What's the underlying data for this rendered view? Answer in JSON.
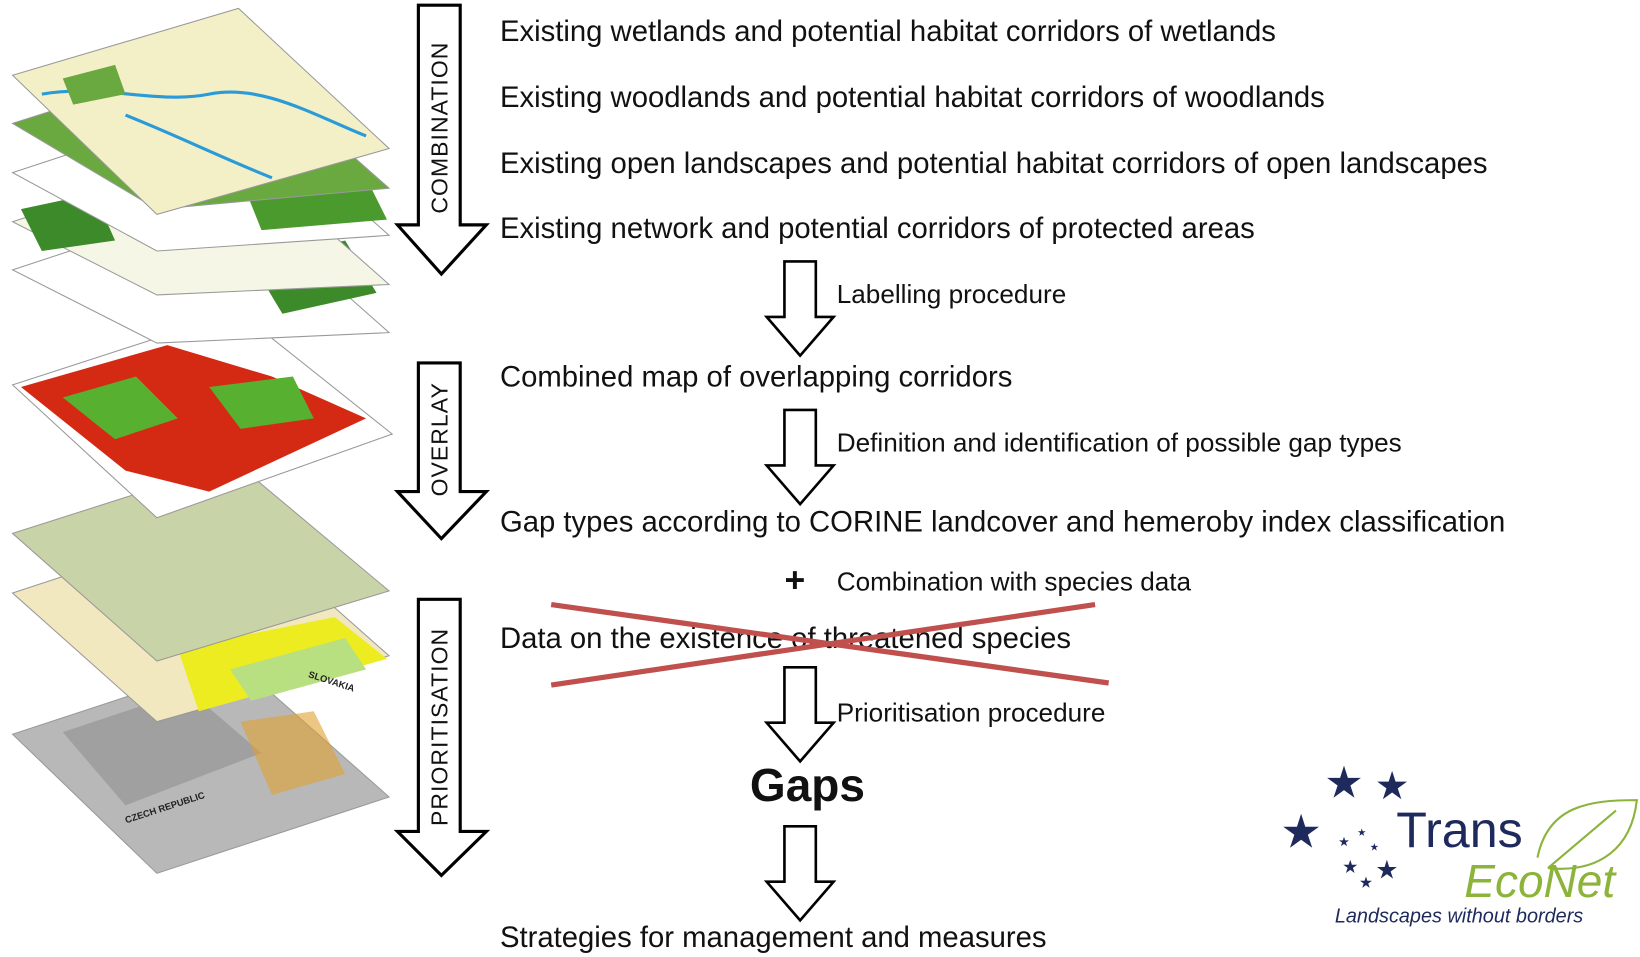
{
  "stages": [
    "COMBINATION",
    "OVERLAY",
    "PRIORITISATION"
  ],
  "layers": [
    "Existing wetlands and potential habitat corridors of wetlands",
    "Existing woodlands and potential habitat corridors of woodlands",
    "Existing open landscapes and potential habitat corridors of open landscapes",
    "Existing network and potential corridors of protected areas"
  ],
  "procedures": [
    "Labelling procedure",
    "Definition and identification of possible gap types",
    "Prioritisation procedure"
  ],
  "combined_map": "Combined map of overlapping corridors",
  "gap_types": "Gap types according to CORINE landcover and hemeroby index classification",
  "species_step": {
    "symbol": "+",
    "label": "Combination with species data"
  },
  "species_data": "Data on the existence of threatened species",
  "result": "Gaps",
  "strategies": "Strategies for management and measures",
  "map_labels": [
    "CZECH REPUBLIC",
    "SLOVAKIA"
  ],
  "logo": {
    "name_1": "Trans",
    "name_2": "EcoNet",
    "tagline": "Landscapes without borders"
  }
}
